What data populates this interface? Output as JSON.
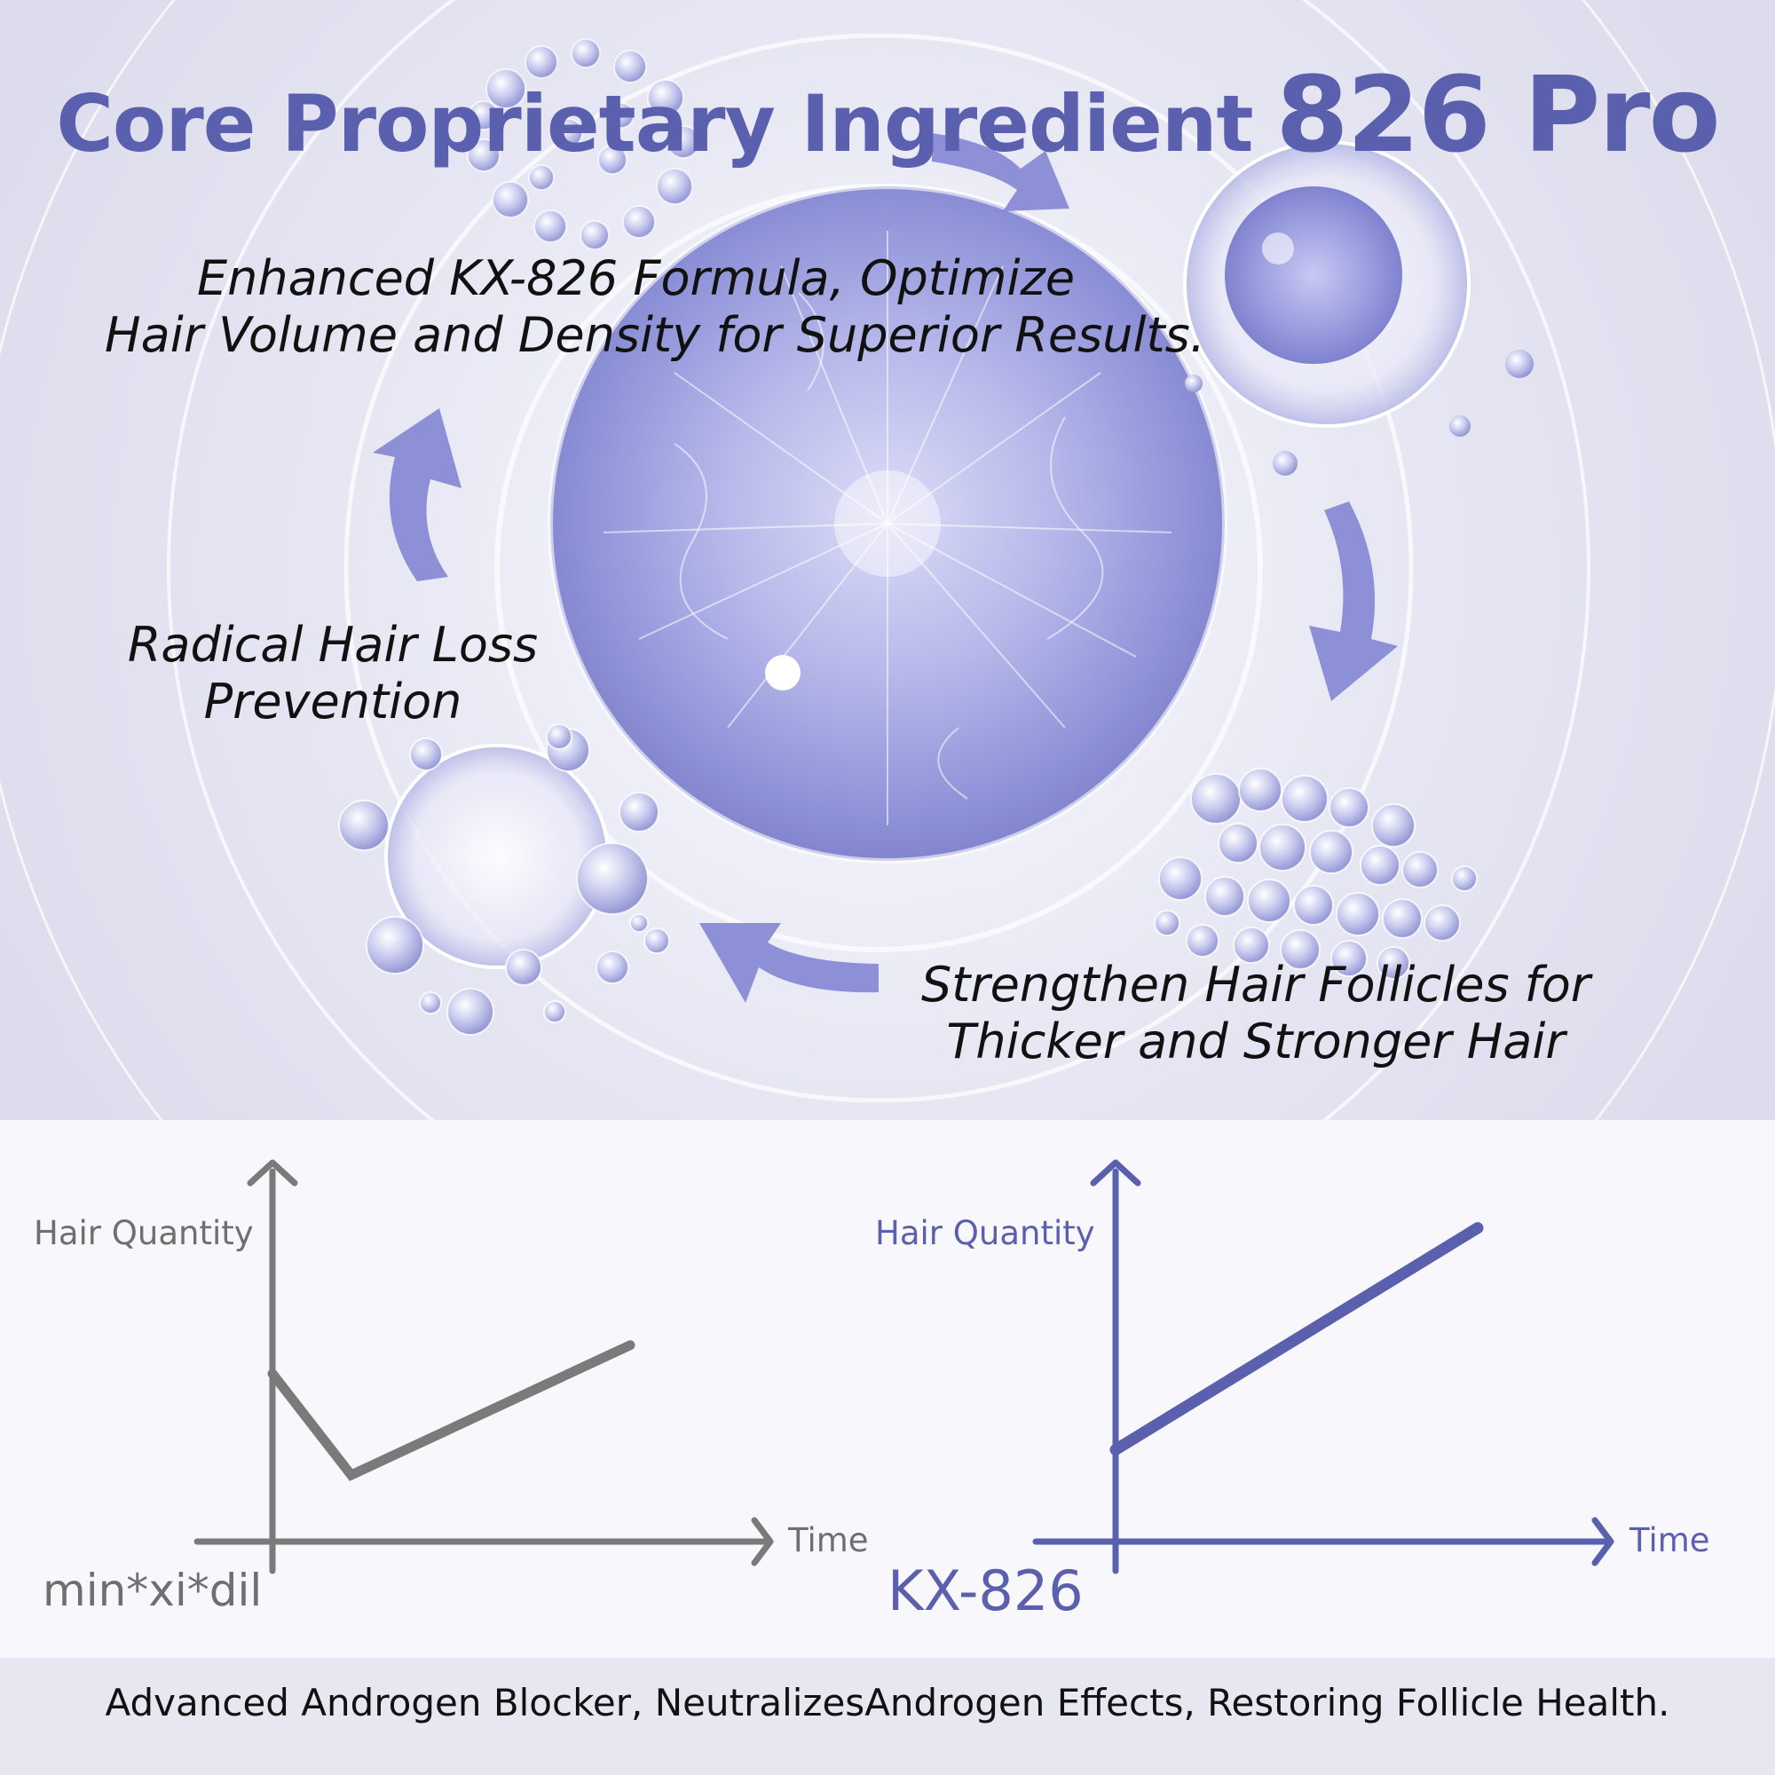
{
  "header": {
    "title_main": "Core Proprietary Ingredient",
    "title_emphasis": "826 Pro"
  },
  "callouts": {
    "formula": [
      "Enhanced KX-826 Formula,   Optimize",
      "Hair Volume and Density for Superior Results."
    ],
    "prevention": [
      "Radical Hair Loss",
      "Prevention"
    ],
    "follicles": [
      "Strengthen Hair Follicles for",
      "Thicker and Stronger Hair"
    ]
  },
  "colors": {
    "accent": "#5a5fae",
    "gray": "#7a7a7a",
    "text": "#111111"
  },
  "chart_data": [
    {
      "type": "line",
      "ylabel": "Hair Quantity",
      "xlabel": "Time",
      "caption": "min*xi*dil",
      "color": "#7a7a7a",
      "series": [
        {
          "x": [
            0,
            0.22,
            1
          ],
          "y": [
            0.53,
            0.21,
            0.62
          ]
        }
      ],
      "xlim": [
        0,
        1
      ],
      "ylim": [
        0,
        1
      ]
    },
    {
      "type": "line",
      "ylabel": "Hair Quantity",
      "xlabel": "Time",
      "caption": "KX-826",
      "color": "#5a5fae",
      "series": [
        {
          "x": [
            0,
            1
          ],
          "y": [
            0.29,
            0.99
          ]
        }
      ],
      "xlim": [
        0,
        1
      ],
      "ylim": [
        0,
        1
      ]
    }
  ],
  "footer": {
    "text": "Advanced Androgen Blocker, NeutralizesAndrogen Effects, Restoring Follicle Health."
  }
}
